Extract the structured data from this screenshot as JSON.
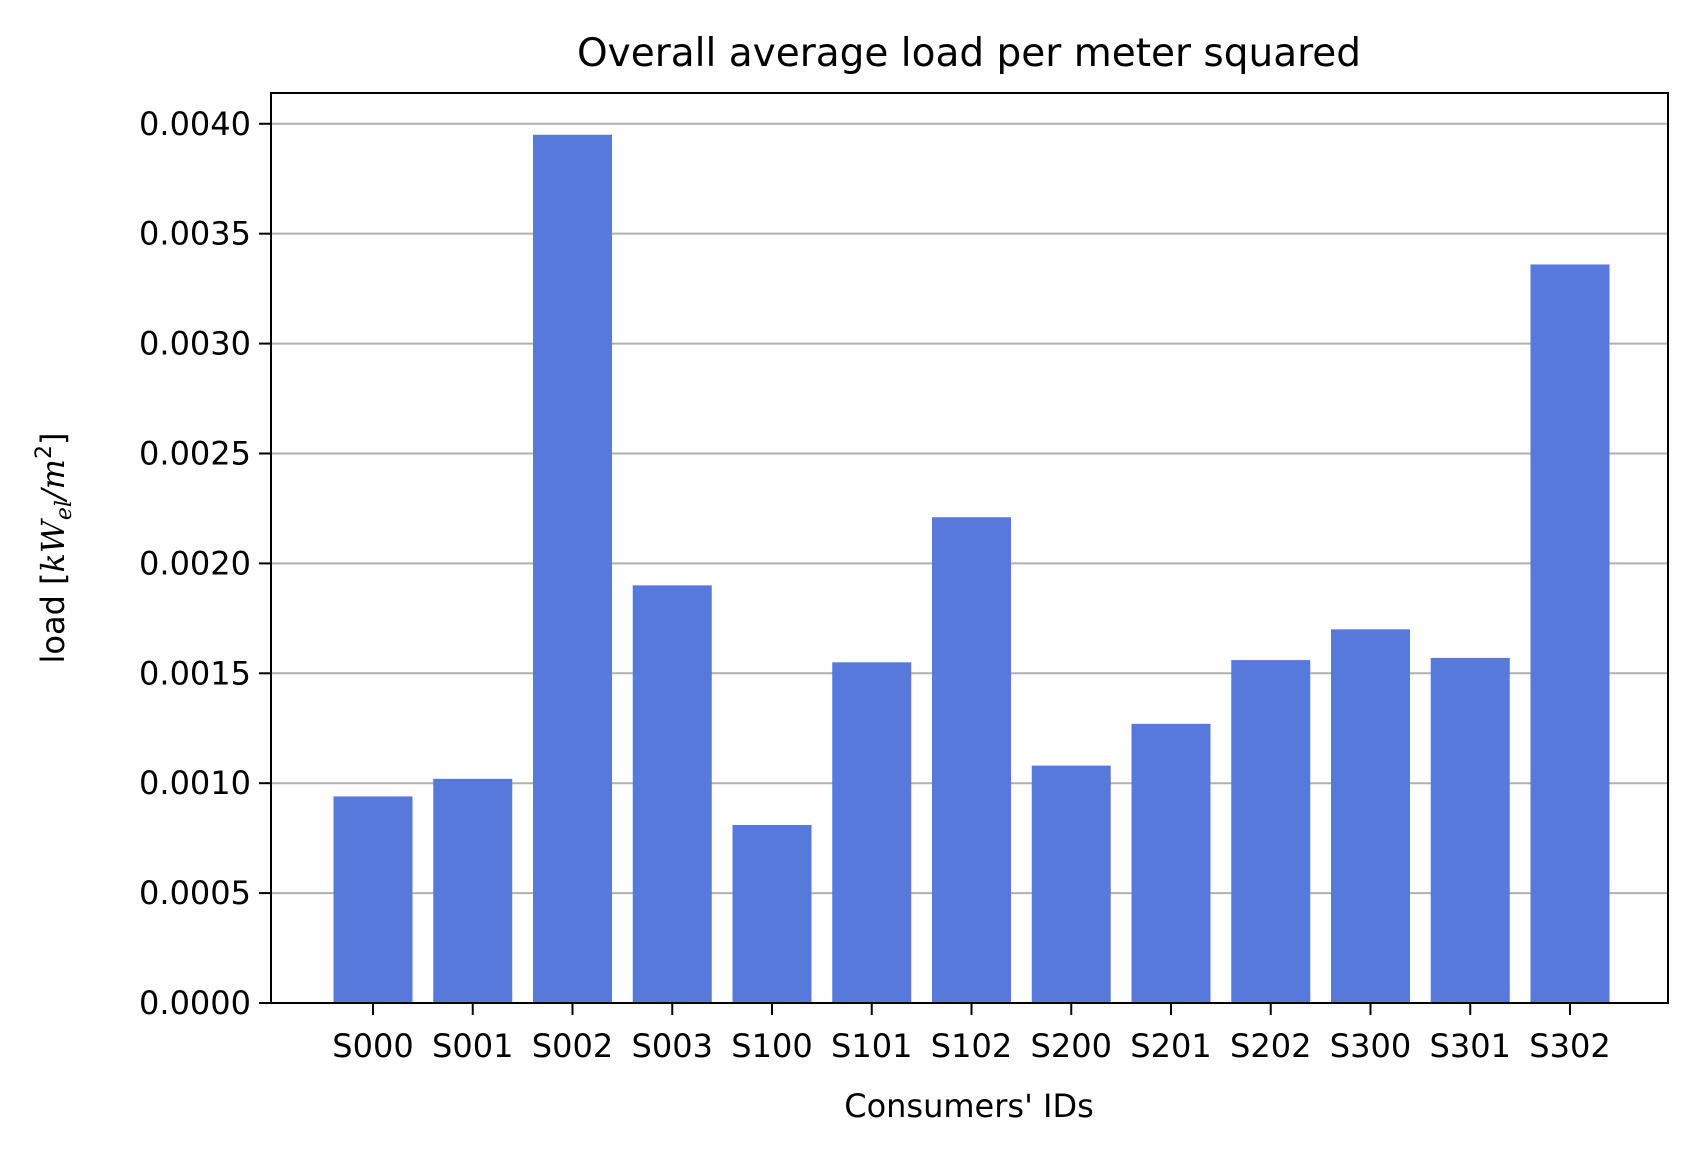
{
  "chart_data": {
    "type": "bar",
    "title": "Overall average load per meter squared",
    "xlabel": "Consumers' IDs",
    "ylabel": {
      "prefix": "load [",
      "k": "k",
      "W": "W",
      "sub": "el",
      "slash": "/",
      "m": "m",
      "sup": "2",
      "suffix": "]"
    },
    "categories": [
      "S000",
      "S001",
      "S002",
      "S003",
      "S100",
      "S101",
      "S102",
      "S200",
      "S201",
      "S202",
      "S300",
      "S301",
      "S302"
    ],
    "values": [
      0.00094,
      0.00102,
      0.00395,
      0.0019,
      0.00081,
      0.00155,
      0.00221,
      0.00108,
      0.00127,
      0.00156,
      0.0017,
      0.00157,
      0.00336
    ],
    "ylim": [
      0,
      0.00414
    ],
    "yticks": [
      "0.0000",
      "0.0005",
      "0.0010",
      "0.0015",
      "0.0020",
      "0.0025",
      "0.0030",
      "0.0035",
      "0.0040"
    ],
    "ytick_values": [
      0,
      0.0005,
      0.001,
      0.0015,
      0.002,
      0.0025,
      0.003,
      0.0035,
      0.004
    ],
    "grid": "y",
    "bar_color": "#5779db",
    "grid_color": "#b0b0b0"
  }
}
